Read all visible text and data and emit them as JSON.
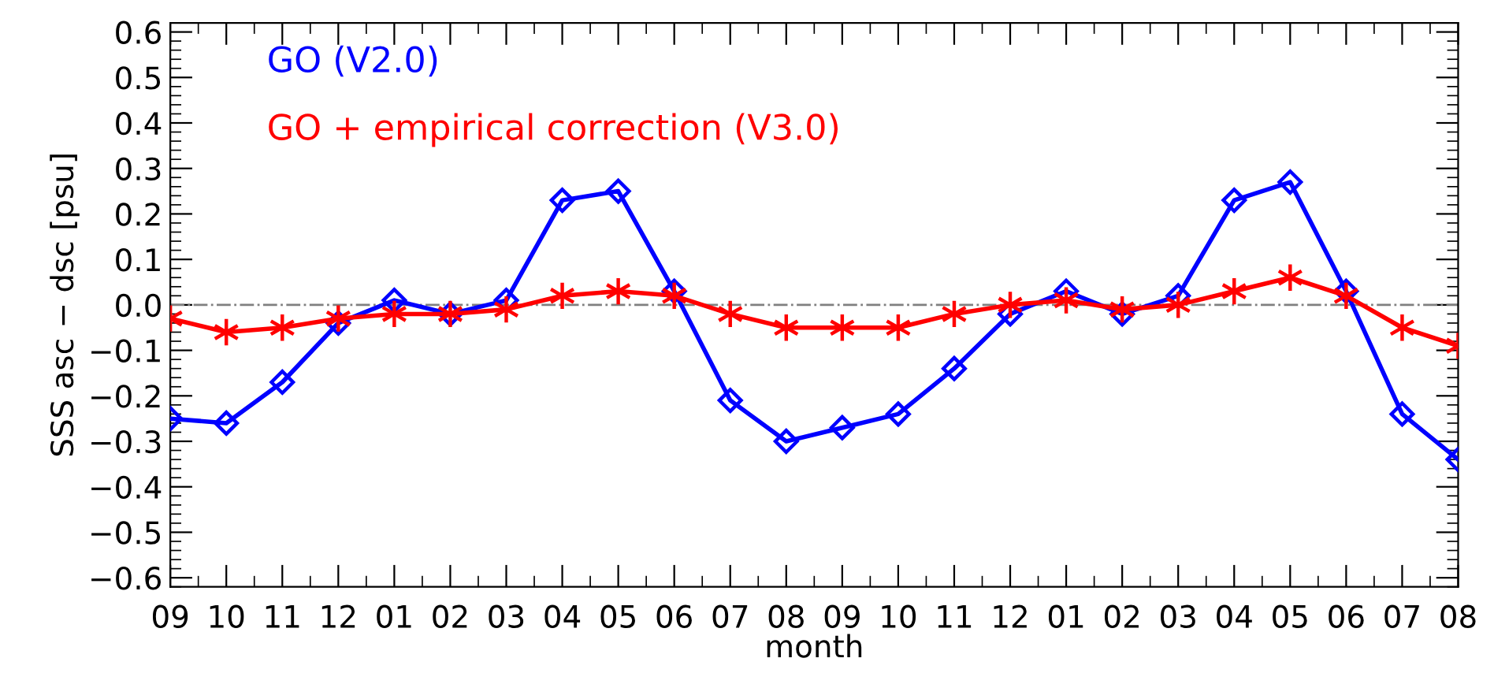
{
  "chart_data": {
    "type": "line",
    "xlabel": "month",
    "ylabel": "SSS asc − dsc [psu]",
    "categories": [
      "09",
      "10",
      "11",
      "12",
      "01",
      "02",
      "03",
      "04",
      "05",
      "06",
      "07",
      "08",
      "09",
      "10",
      "11",
      "12",
      "01",
      "02",
      "03",
      "04",
      "05",
      "06",
      "07",
      "08"
    ],
    "series": [
      {
        "name": "GO (V2.0)",
        "color": "#0000ff",
        "marker": "diamond",
        "values": [
          -0.25,
          -0.26,
          -0.17,
          -0.04,
          0.01,
          -0.02,
          0.01,
          0.23,
          0.25,
          0.03,
          -0.21,
          -0.3,
          -0.27,
          -0.24,
          -0.14,
          -0.02,
          0.03,
          -0.02,
          0.02,
          0.23,
          0.27,
          0.03,
          -0.24,
          -0.34
        ]
      },
      {
        "name": "GO + empirical correction (V3.0)",
        "color": "#ff0000",
        "marker": "cross",
        "values": [
          -0.03,
          -0.06,
          -0.05,
          -0.03,
          -0.02,
          -0.02,
          -0.01,
          0.02,
          0.03,
          0.02,
          -0.02,
          -0.05,
          -0.05,
          -0.05,
          -0.02,
          0.0,
          0.01,
          -0.01,
          0.0,
          0.03,
          0.06,
          0.02,
          -0.05,
          -0.09
        ]
      }
    ],
    "ylim": [
      -0.62,
      0.62
    ],
    "yticks": [
      {
        "value": -0.6,
        "label": "−0.6"
      },
      {
        "value": -0.5,
        "label": "−0.5"
      },
      {
        "value": -0.4,
        "label": "−0.4"
      },
      {
        "value": -0.3,
        "label": "−0.3"
      },
      {
        "value": -0.2,
        "label": "−0.2"
      },
      {
        "value": -0.1,
        "label": "−0.1"
      },
      {
        "value": 0,
        "label": "0.0"
      },
      {
        "value": 0.1,
        "label": "0.1"
      },
      {
        "value": 0.2,
        "label": "0.2"
      },
      {
        "value": 0.3,
        "label": "0.3"
      },
      {
        "value": 0.4,
        "label": "0.4"
      },
      {
        "value": 0.5,
        "label": "0.5"
      },
      {
        "value": 0.6,
        "label": "0.6"
      }
    ],
    "ref_lines": [
      {
        "axis": "y",
        "value": 0,
        "color": "#808080",
        "line_style": "dashdot"
      }
    ],
    "legend": "top left",
    "grid": false,
    "line_style": "solid"
  }
}
